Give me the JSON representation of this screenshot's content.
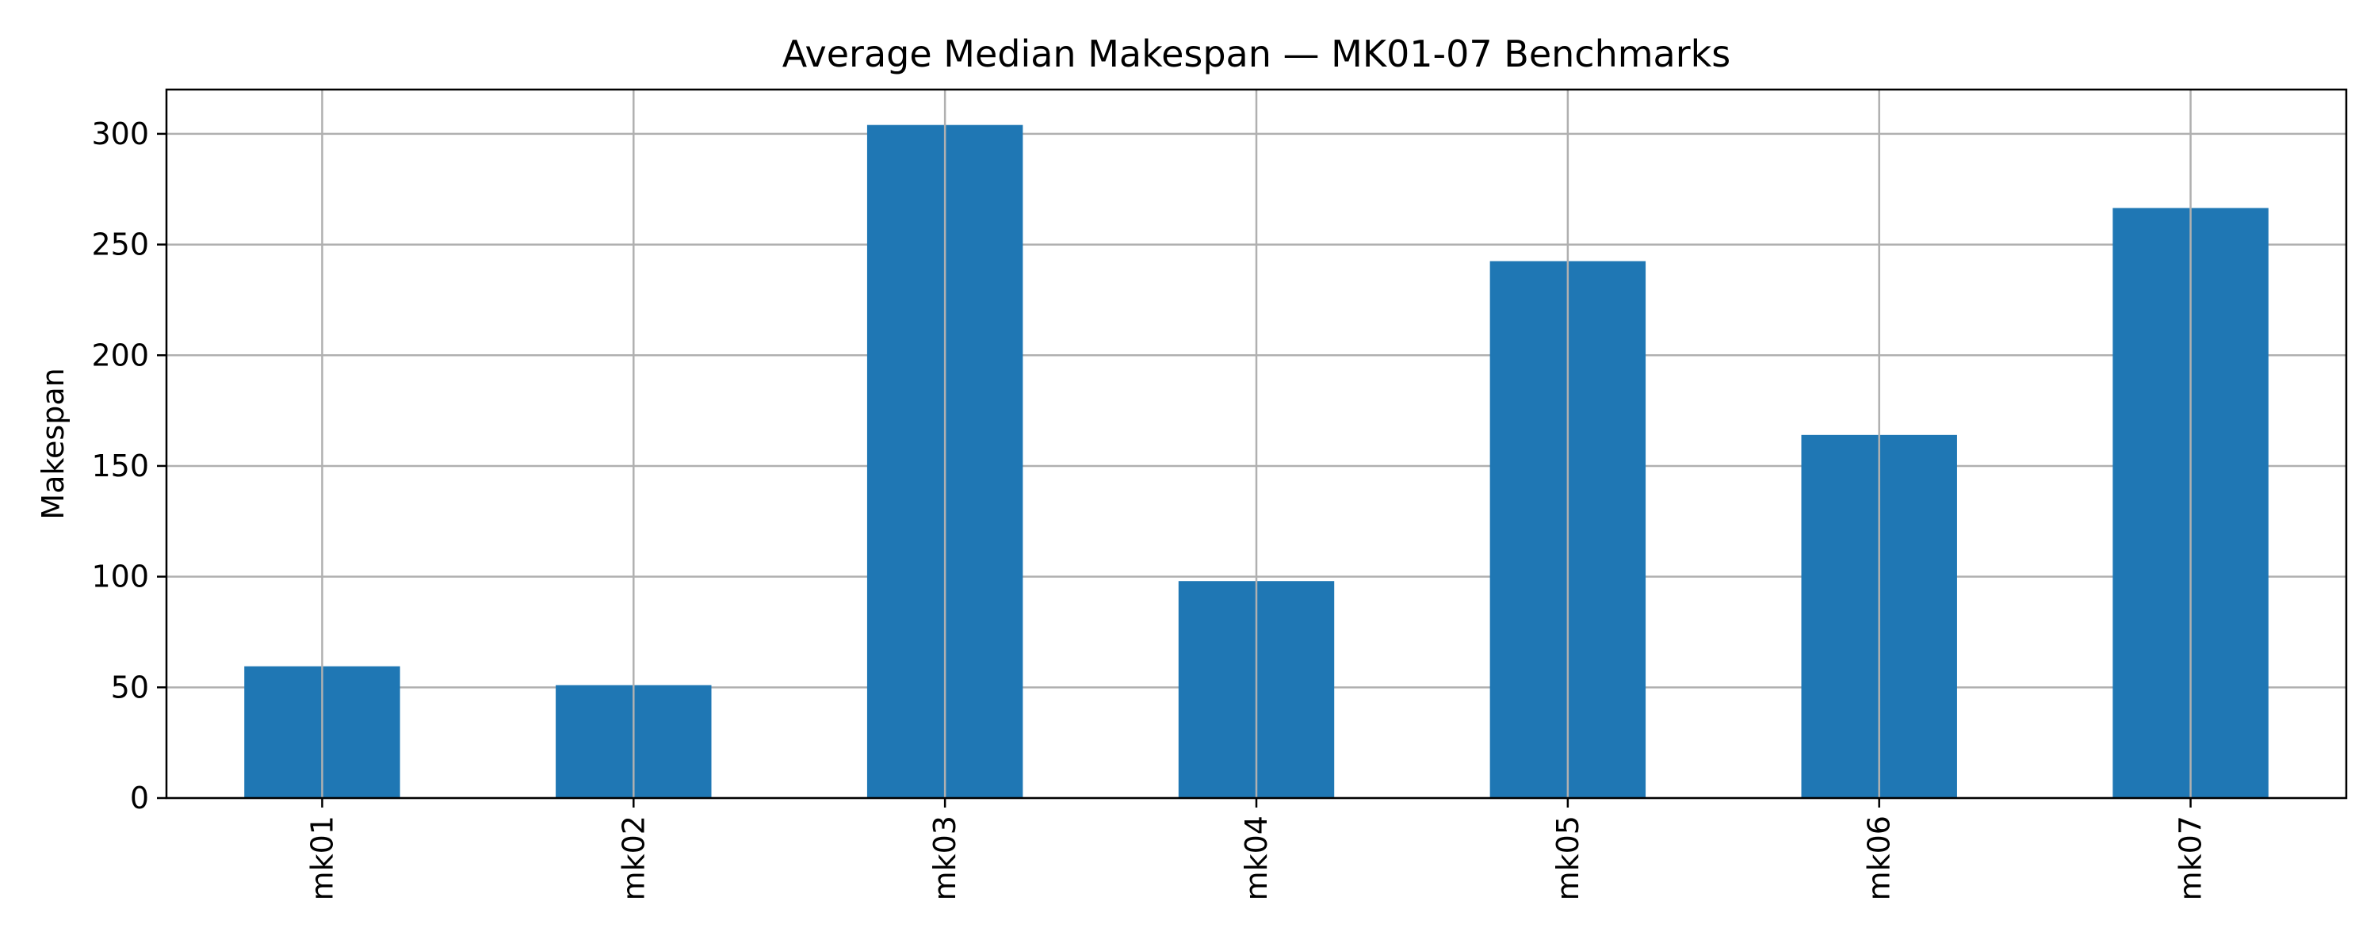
{
  "chart_data": {
    "type": "bar",
    "title": "Average Median Makespan — MK01-07 Benchmarks",
    "xlabel": "",
    "ylabel": "Makespan",
    "categories": [
      "mk01",
      "mk02",
      "mk03",
      "mk04",
      "mk05",
      "mk06",
      "mk07"
    ],
    "values": [
      59.5,
      51,
      304,
      98,
      242.5,
      164,
      266.5
    ],
    "ylim": [
      0,
      320
    ],
    "yticks": [
      0,
      50,
      100,
      150,
      200,
      250,
      300
    ],
    "ytick_labels": [
      "0",
      "50",
      "100",
      "150",
      "200",
      "250",
      "300"
    ],
    "grid": true,
    "xtick_rotation": "vertical",
    "bar_color": "#1f77b4",
    "grid_color": "#b0b0b0",
    "axis_color": "#000000"
  }
}
